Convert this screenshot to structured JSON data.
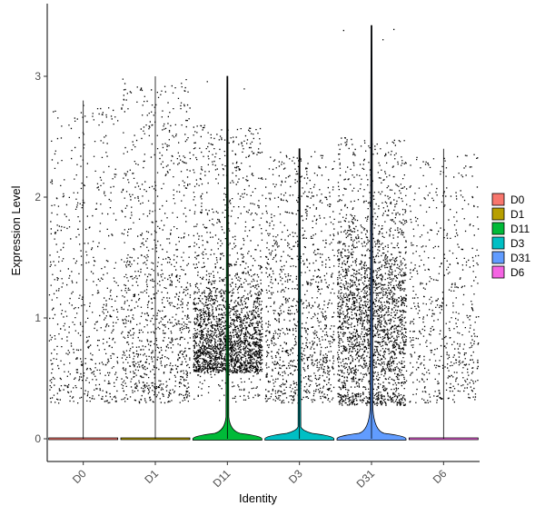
{
  "chart_data": {
    "type": "violin",
    "xlabel": "Identity",
    "ylabel": "Expression Level",
    "ylim": [
      -0.18,
      3.5
    ],
    "y_ticks": [
      0,
      1,
      2,
      3
    ],
    "y_tick_labels": [
      "0",
      "1",
      "2",
      "3"
    ],
    "categories": [
      "D0",
      "D1",
      "D11",
      "D3",
      "D31",
      "D6"
    ],
    "colors": [
      "#F8766D",
      "#B79F00",
      "#00BA38",
      "#00BFC4",
      "#619CFF",
      "#F564E3"
    ],
    "legend": {
      "placement": "right",
      "entries": [
        "D0",
        "D1",
        "D11",
        "D3",
        "D31",
        "D6"
      ]
    },
    "groups": [
      {
        "name": "D0",
        "max": 2.8,
        "point_density": "sparse",
        "violin_height": 0.0
      },
      {
        "name": "D1",
        "max": 3.0,
        "point_density": "medium",
        "violin_height": 0.0
      },
      {
        "name": "D11",
        "max": 3.0,
        "point_density": "dense",
        "violin_height": 0.18
      },
      {
        "name": "D3",
        "max": 2.4,
        "point_density": "medium",
        "violin_height": 0.1
      },
      {
        "name": "D31",
        "max": 3.42,
        "point_density": "very-dense",
        "violin_height": 0.25
      },
      {
        "name": "D6",
        "max": 2.4,
        "point_density": "sparse",
        "violin_height": 0.0
      }
    ],
    "grid": false
  }
}
